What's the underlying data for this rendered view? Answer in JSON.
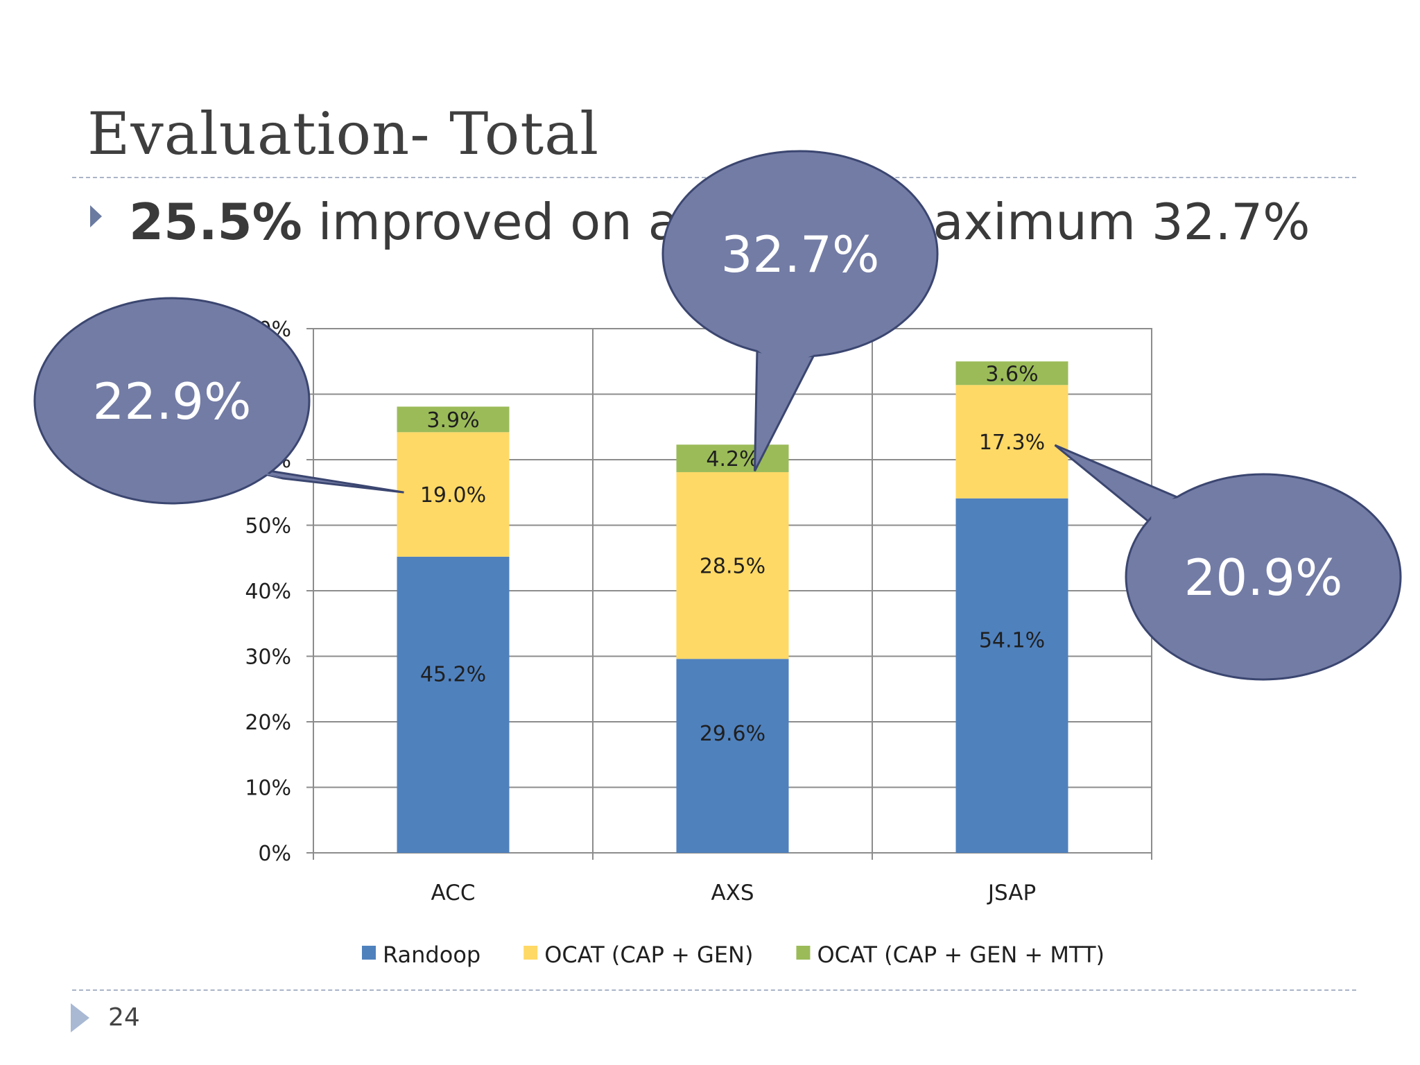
{
  "slide": {
    "title": "Evaluation- Total",
    "bullet_bold": "25.5%",
    "bullet_rest": " improved on average, maximum 32.7%",
    "page_number": "24"
  },
  "chart_data": {
    "type": "bar",
    "stacked": true,
    "categories": [
      "ACC",
      "AXS",
      "JSAP"
    ],
    "series": [
      {
        "name": "Randoop",
        "color": "#4f81bd",
        "values": [
          45.2,
          29.6,
          54.1
        ]
      },
      {
        "name": "OCAT (CAP + GEN)",
        "color": "#ffd966",
        "values": [
          19.0,
          28.5,
          17.3
        ]
      },
      {
        "name": "OCAT (CAP + GEN + MTT)",
        "color": "#9bbb59",
        "values": [
          3.9,
          4.2,
          3.6
        ]
      }
    ],
    "value_format": "{v}%",
    "ylim": [
      0,
      80
    ],
    "yticks": [
      0,
      10,
      20,
      30,
      40,
      50,
      60,
      70,
      80
    ],
    "ytick_labels": [
      "0%",
      "10%",
      "20%",
      "30%",
      "40%",
      "50%",
      "60%",
      "70%",
      "80%"
    ],
    "grid": true,
    "legend": "bottom",
    "callouts": [
      {
        "text": "22.9%",
        "category": "ACC",
        "color": "#737ca5"
      },
      {
        "text": "32.7%",
        "category": "AXS",
        "color": "#737ca5"
      },
      {
        "text": "20.9%",
        "category": "JSAP",
        "color": "#737ca5"
      }
    ]
  }
}
